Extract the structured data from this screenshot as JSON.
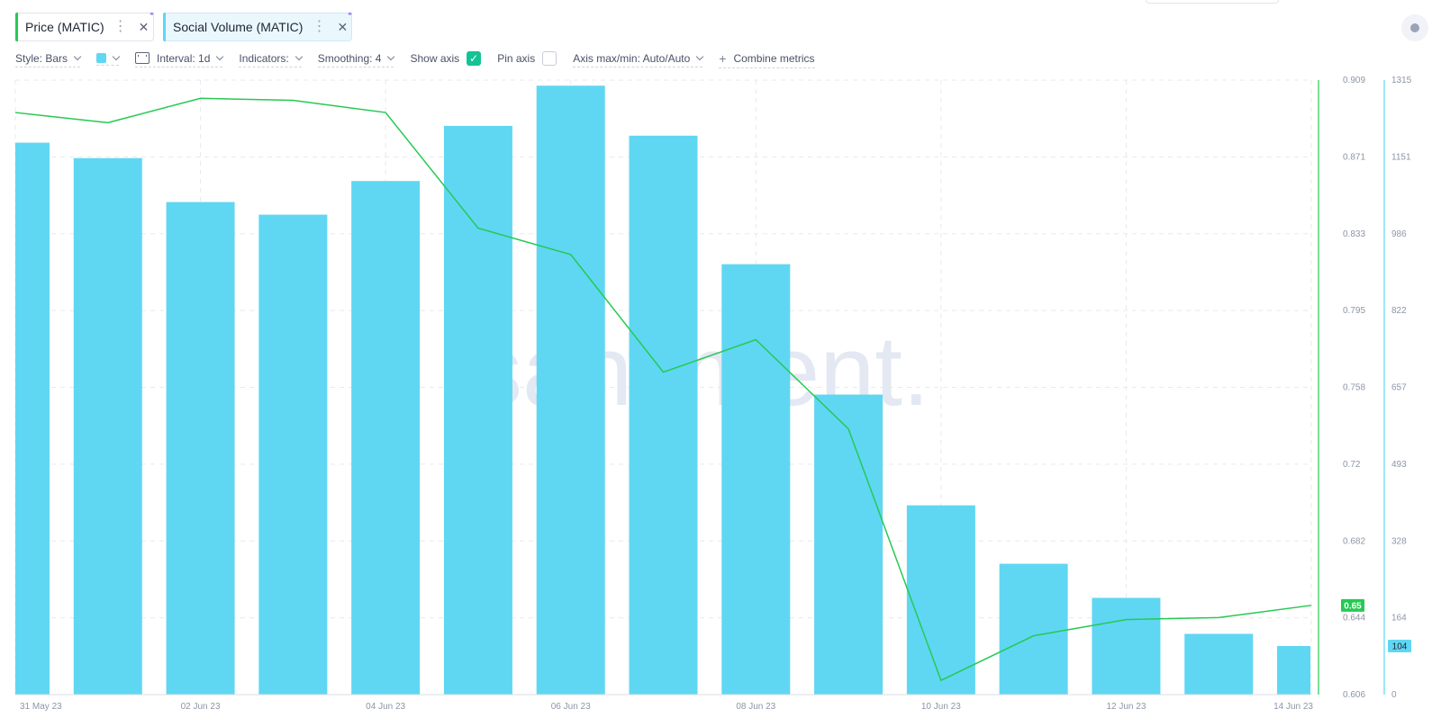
{
  "metrics": [
    {
      "name": "Price (MATIC)",
      "color": "#26c953",
      "menu_icon": "more-vertical-icon",
      "close_icon": "close-icon"
    },
    {
      "name": "Social Volume (MATIC)",
      "color": "#5fd7f2",
      "menu_icon": "more-vertical-icon",
      "close_icon": "close-icon"
    }
  ],
  "toolbar": {
    "style": "Style: Bars",
    "interval": "Interval: 1d",
    "indicators": "Indicators:",
    "smoothing": "Smoothing: 4",
    "show_axis": "Show axis",
    "show_axis_checked": true,
    "pin_axis": "Pin axis",
    "pin_axis_checked": false,
    "axis_maxmin": "Axis max/min: Auto/Auto",
    "combine": "Combine metrics"
  },
  "watermark": "santiment.",
  "chart_data": {
    "type": "bar",
    "x": [
      "31 May 23",
      "01 Jun 23",
      "02 Jun 23",
      "03 Jun 23",
      "04 Jun 23",
      "05 Jun 23",
      "06 Jun 23",
      "07 Jun 23",
      "08 Jun 23",
      "09 Jun 23",
      "10 Jun 23",
      "11 Jun 23",
      "12 Jun 23",
      "13 Jun 23",
      "14 Jun 23"
    ],
    "x_tick_labels": [
      "31 May 23",
      "02 Jun 23",
      "04 Jun 23",
      "06 Jun 23",
      "08 Jun 23",
      "10 Jun 23",
      "12 Jun 23",
      "14 Jun 23"
    ],
    "series": [
      {
        "name": "Social Volume (MATIC)",
        "type": "bar",
        "color": "#5fd7f2",
        "axis": "right-outer",
        "values": [
          1181,
          1148,
          1054,
          1027,
          1099,
          1217,
          1303,
          1196,
          921,
          642,
          405,
          280,
          207,
          130,
          104
        ]
      },
      {
        "name": "Price (MATIC)",
        "type": "line",
        "color": "#26c953",
        "axis": "right-inner",
        "values": [
          0.893,
          0.888,
          0.9,
          0.899,
          0.893,
          0.836,
          0.823,
          0.765,
          0.781,
          0.737,
          0.613,
          0.635,
          0.643,
          0.644,
          0.65
        ]
      }
    ],
    "price_axis": {
      "ticks": [
        "0.909",
        "0.871",
        "0.833",
        "0.795",
        "0.758",
        "0.72",
        "0.682",
        "0.644",
        "0.606"
      ],
      "ylim": [
        0.606,
        0.909
      ],
      "last_value_label": "0.65"
    },
    "volume_axis": {
      "ticks": [
        "1315",
        "1151",
        "986",
        "822",
        "657",
        "493",
        "328",
        "164",
        "0"
      ],
      "ylim": [
        0,
        1315
      ],
      "last_value_label": "104"
    },
    "grid": true
  }
}
